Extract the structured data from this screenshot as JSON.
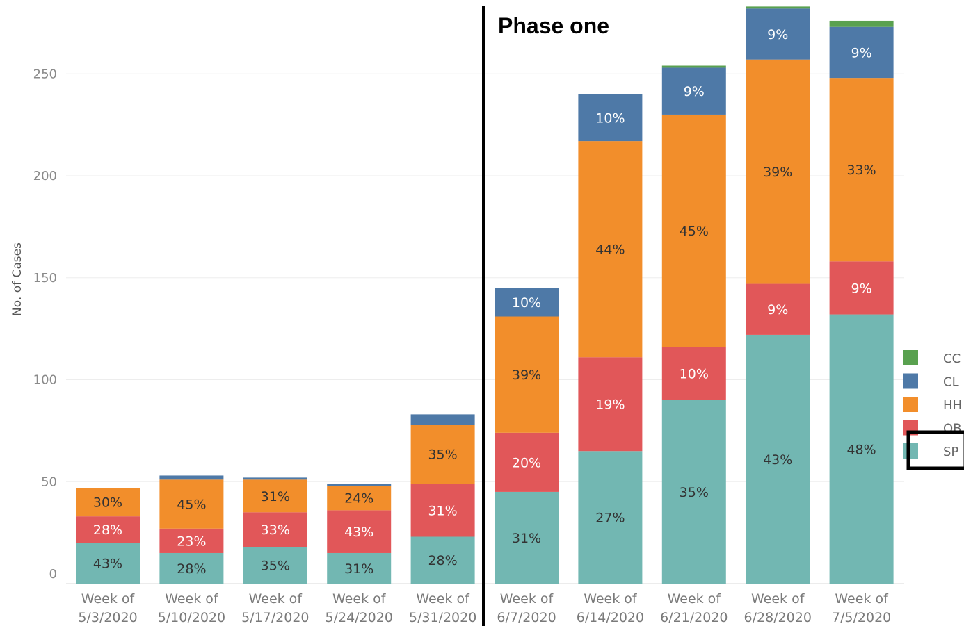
{
  "chart_data": {
    "type": "bar",
    "stacked": true,
    "title": "",
    "xlabel": "",
    "ylabel": "No. of Cases",
    "ylim": [
      0,
      280
    ],
    "yticks": [
      0,
      50,
      100,
      150,
      200,
      250
    ],
    "grid": true,
    "legend_position": "right",
    "annotation": "Phase one",
    "categories": [
      [
        "Week of",
        "5/3/2020"
      ],
      [
        "Week of",
        "5/10/2020"
      ],
      [
        "Week of",
        "5/17/2020"
      ],
      [
        "Week of",
        "5/24/2020"
      ],
      [
        "Week of",
        "5/31/2020"
      ],
      [
        "Week of",
        "6/7/2020"
      ],
      [
        "Week of",
        "6/14/2020"
      ],
      [
        "Week of",
        "6/21/2020"
      ],
      [
        "Week of",
        "6/28/2020"
      ],
      [
        "Week of",
        "7/5/2020"
      ]
    ],
    "series": [
      {
        "name": "SP",
        "color": "#72b7b2",
        "values": [
          20,
          15,
          18,
          15,
          23,
          45,
          65,
          90,
          122,
          132
        ],
        "labels": [
          "43%",
          "28%",
          "35%",
          "31%",
          "28%",
          "31%",
          "27%",
          "35%",
          "43%",
          "48%"
        ]
      },
      {
        "name": "OB",
        "color": "#e15759",
        "values": [
          13,
          12,
          17,
          21,
          26,
          29,
          46,
          26,
          25,
          26
        ],
        "labels": [
          "28%",
          "23%",
          "33%",
          "43%",
          "31%",
          "20%",
          "19%",
          "10%",
          "9%",
          "9%"
        ]
      },
      {
        "name": "HH",
        "color": "#f28e2b",
        "values": [
          14,
          24,
          16,
          12,
          29,
          57,
          106,
          114,
          110,
          90
        ],
        "labels": [
          "30%",
          "45%",
          "31%",
          "24%",
          "35%",
          "39%",
          "44%",
          "45%",
          "39%",
          "33%"
        ]
      },
      {
        "name": "CL",
        "color": "#4e79a7",
        "values": [
          0,
          2,
          1,
          1,
          5,
          14,
          23,
          23,
          25,
          25
        ],
        "labels": [
          "",
          "",
          "",
          "",
          "",
          "10%",
          "10%",
          "9%",
          "9%",
          "9%"
        ]
      },
      {
        "name": "CC",
        "color": "#59a14f",
        "values": [
          0,
          0,
          0,
          0,
          0,
          0,
          0,
          1,
          1,
          3
        ],
        "labels": [
          "",
          "",
          "",
          "",
          "",
          "",
          "",
          "",
          "",
          ""
        ]
      }
    ],
    "legend_order": [
      "CC",
      "CL",
      "HH",
      "OB",
      "SP"
    ],
    "label_colors": {
      "SP": "#333333",
      "OB": "#ffffff",
      "HH": "#333333",
      "CL": "#ffffff",
      "CC": "#ffffff"
    }
  }
}
